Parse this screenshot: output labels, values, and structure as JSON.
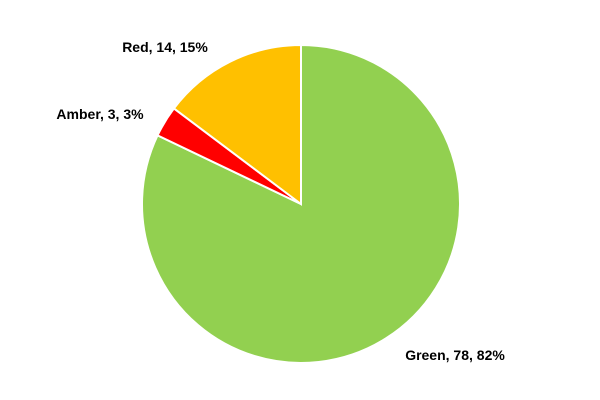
{
  "chart_data": {
    "type": "pie",
    "categories": [
      "Green",
      "Amber",
      "Red"
    ],
    "values": [
      78,
      3,
      14
    ],
    "labels": [
      "Green, 78, 82%",
      "Amber, 3, 3%",
      "Red, 14, 15%"
    ],
    "percentages": [
      82,
      3,
      15
    ],
    "colors": [
      "#92D050",
      "#FF0000",
      "#FFC000"
    ],
    "legend": "none",
    "title": ""
  }
}
